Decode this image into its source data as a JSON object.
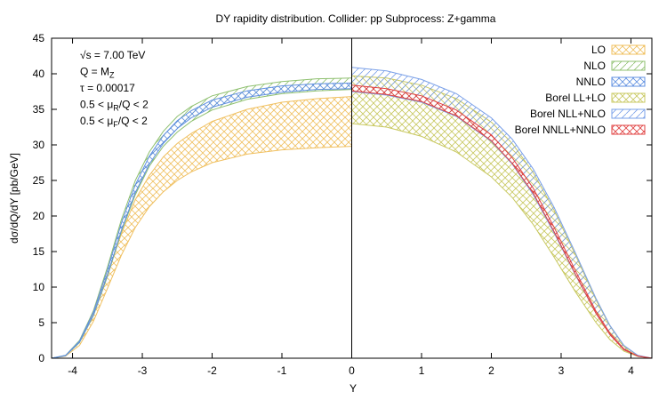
{
  "chart_data": {
    "type": "area",
    "title": "DY rapidity distribution.   Collider: pp   Subprocess: Z+gamma",
    "xlabel": "Y",
    "ylabel": "dσ/dQ/dY [pb/GeV]",
    "xlim": [
      -4.3,
      4.3
    ],
    "ylim": [
      0,
      45
    ],
    "xticks": [
      -4,
      -3,
      -2,
      -1,
      0,
      1,
      2,
      3,
      4
    ],
    "yticks": [
      0,
      5,
      10,
      15,
      20,
      25,
      30,
      35,
      40,
      45
    ],
    "grid": false,
    "legend_position": "top-right",
    "annotations": [
      {
        "prefix": "√s = 7.00 TeV"
      },
      {
        "prefix": "Q = M",
        "sub": "Z"
      },
      {
        "prefix": "τ = 0.00017"
      },
      {
        "prefix": "0.5 < μ",
        "sub": "R",
        "suffix": "/Q < 2"
      },
      {
        "prefix": "0.5 < μ",
        "sub": "F",
        "suffix": "/Q < 2"
      }
    ],
    "series": [
      {
        "name": "LO",
        "color": "#f0c060",
        "pattern": "cross",
        "x": [
          -4.3,
          -4.1,
          -3.9,
          -3.7,
          -3.5,
          -3.3,
          -3.1,
          -2.9,
          -2.7,
          -2.5,
          -2.3,
          -2.0,
          -1.5,
          -1.0,
          -0.5,
          0
        ],
        "lower": [
          0,
          0.3,
          1.8,
          5.2,
          9.8,
          14.5,
          18.4,
          21.3,
          23.4,
          25.0,
          26.2,
          27.5,
          28.7,
          29.3,
          29.6,
          29.8
        ],
        "upper": [
          0,
          0.35,
          2.3,
          6.2,
          11.8,
          17.5,
          22.3,
          25.7,
          28.3,
          30.2,
          31.6,
          33.3,
          35.0,
          36.0,
          36.5,
          36.8
        ]
      },
      {
        "name": "NLO",
        "color": "#8fc070",
        "pattern": "diag",
        "x": [
          -4.3,
          -4.1,
          -3.9,
          -3.7,
          -3.5,
          -3.3,
          -3.1,
          -2.9,
          -2.7,
          -2.5,
          -2.3,
          -2.0,
          -1.5,
          -1.0,
          -0.5,
          0
        ],
        "lower": [
          0,
          0.35,
          2.2,
          6.0,
          11.5,
          17.8,
          23.0,
          27.0,
          29.8,
          31.8,
          33.3,
          34.9,
          36.4,
          37.2,
          37.6,
          37.8
        ],
        "upper": [
          0,
          0.4,
          2.5,
          6.7,
          12.8,
          19.5,
          25.0,
          29.0,
          31.9,
          34.0,
          35.4,
          36.9,
          38.2,
          38.9,
          39.3,
          39.4
        ]
      },
      {
        "name": "NNLO",
        "color": "#6090e0",
        "pattern": "cross",
        "x": [
          -4.3,
          -4.1,
          -3.9,
          -3.7,
          -3.5,
          -3.3,
          -3.1,
          -2.9,
          -2.7,
          -2.5,
          -2.3,
          -2.0,
          -1.5,
          -1.0,
          -0.5,
          0
        ],
        "lower": [
          0,
          0.35,
          2.25,
          6.1,
          11.7,
          18.0,
          23.3,
          27.3,
          30.2,
          32.3,
          33.8,
          35.3,
          36.7,
          37.4,
          37.8,
          37.9
        ],
        "upper": [
          0,
          0.4,
          2.4,
          6.5,
          12.4,
          19.0,
          24.4,
          28.4,
          31.3,
          33.4,
          34.8,
          36.3,
          37.6,
          38.3,
          38.6,
          38.7
        ]
      },
      {
        "name": "Borel LL+LO",
        "color": "#c8c860",
        "pattern": "cross",
        "x": [
          0,
          0.5,
          1.0,
          1.5,
          2.0,
          2.3,
          2.6,
          2.9,
          3.2,
          3.5,
          3.7,
          3.9,
          4.1,
          4.3
        ],
        "lower": [
          33.0,
          32.5,
          31.2,
          29.0,
          25.5,
          22.6,
          18.8,
          14.2,
          9.4,
          5.0,
          2.6,
          1.0,
          0.25,
          0
        ],
        "upper": [
          39.7,
          39.4,
          38.4,
          36.5,
          33.2,
          30.2,
          26.1,
          20.8,
          14.6,
          8.2,
          4.5,
          1.7,
          0.35,
          0
        ]
      },
      {
        "name": "Borel NLL+NLO",
        "color": "#7aa0e8",
        "pattern": "diag",
        "x": [
          0,
          0.5,
          1.0,
          1.5,
          2.0,
          2.3,
          2.6,
          2.9,
          3.2,
          3.5,
          3.7,
          3.9,
          4.1,
          4.3
        ],
        "lower": [
          37.5,
          37.0,
          36.0,
          34.0,
          30.5,
          27.3,
          23.0,
          17.6,
          11.8,
          6.3,
          3.3,
          1.2,
          0.3,
          0
        ],
        "upper": [
          40.9,
          40.4,
          39.2,
          37.2,
          33.8,
          30.8,
          26.6,
          21.2,
          14.9,
          8.4,
          4.6,
          1.8,
          0.4,
          0
        ]
      },
      {
        "name": "Borel NNLL+NNLO",
        "color": "#e04040",
        "pattern": "cross",
        "x": [
          0,
          0.5,
          1.0,
          1.5,
          2.0,
          2.3,
          2.6,
          2.9,
          3.2,
          3.5,
          3.7,
          3.9,
          4.1,
          4.3
        ],
        "lower": [
          37.6,
          37.1,
          36.1,
          34.1,
          30.6,
          27.4,
          23.2,
          17.8,
          11.9,
          6.3,
          3.3,
          1.2,
          0.3,
          0
        ],
        "upper": [
          38.4,
          37.9,
          36.9,
          34.9,
          31.4,
          28.2,
          23.9,
          18.4,
          12.4,
          6.6,
          3.5,
          1.3,
          0.3,
          0
        ]
      }
    ]
  }
}
